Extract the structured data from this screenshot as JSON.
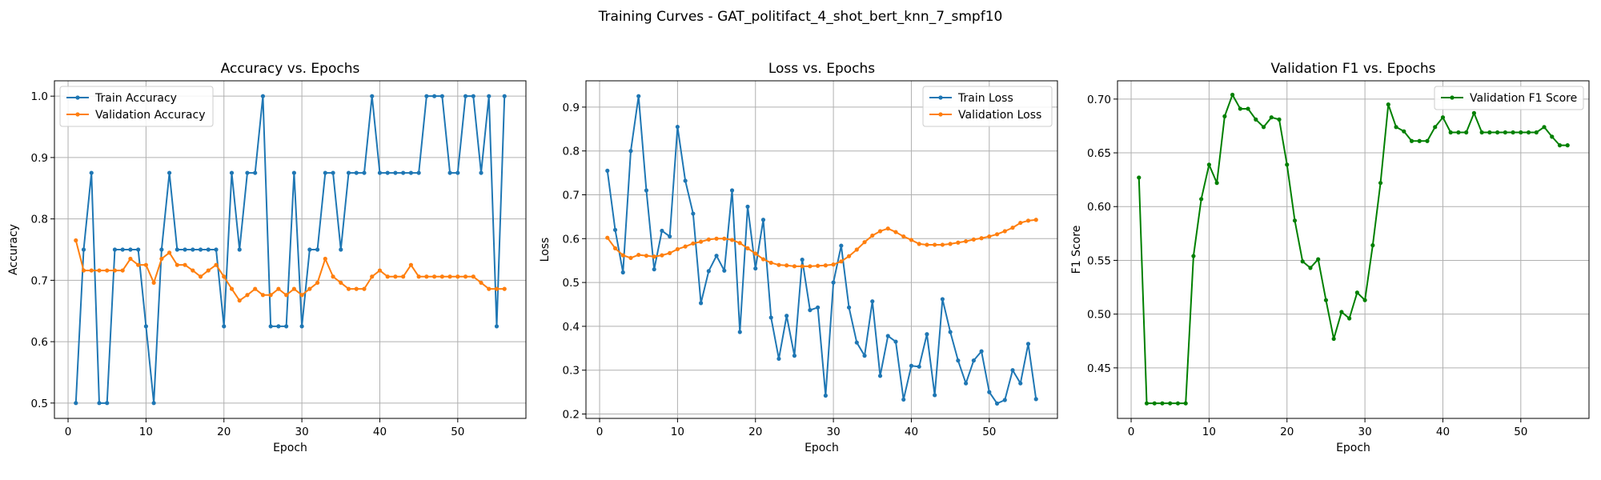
{
  "figure": {
    "suptitle": "Training Curves - GAT_politifact_4_shot_bert_knn_7_smpf10"
  },
  "colors": {
    "train": "#1f77b4",
    "validation": "#ff7f0e",
    "f1": "#008000"
  },
  "chart_data": [
    {
      "type": "line",
      "title": "Accuracy vs. Epochs",
      "xlabel": "Epoch",
      "ylabel": "Accuracy",
      "xlim": [
        -1.75,
        58.75
      ],
      "ylim": [
        0.475,
        1.025
      ],
      "xticks": [
        0,
        10,
        20,
        30,
        40,
        50
      ],
      "yticks": [
        0.5,
        0.6,
        0.7,
        0.8,
        0.9,
        1.0
      ],
      "ytick_labels": [
        "0.5",
        "0.6",
        "0.7",
        "0.8",
        "0.9",
        "1.0"
      ],
      "grid": true,
      "legend": "top-left",
      "series": [
        {
          "name": "Train Accuracy",
          "color": "#1f77b4",
          "values": [
            0.5,
            0.75,
            0.875,
            0.5,
            0.5,
            0.75,
            0.75,
            0.75,
            0.75,
            0.625,
            0.5,
            0.75,
            0.875,
            0.75,
            0.75,
            0.75,
            0.75,
            0.75,
            0.75,
            0.625,
            0.875,
            0.75,
            0.875,
            0.875,
            1.0,
            0.625,
            0.625,
            0.625,
            0.875,
            0.625,
            0.75,
            0.75,
            0.875,
            0.875,
            0.75,
            0.875,
            0.875,
            0.875,
            1.0,
            0.875,
            0.875,
            0.875,
            0.875,
            0.875,
            0.875,
            1.0,
            1.0,
            1.0,
            0.875,
            0.875,
            1.0,
            1.0,
            0.875,
            1.0,
            0.625,
            1.0
          ]
        },
        {
          "name": "Validation Accuracy",
          "color": "#ff7f0e",
          "values": [
            0.765,
            0.716,
            0.716,
            0.716,
            0.716,
            0.716,
            0.716,
            0.735,
            0.725,
            0.725,
            0.696,
            0.735,
            0.745,
            0.725,
            0.725,
            0.716,
            0.706,
            0.716,
            0.725,
            0.706,
            0.686,
            0.667,
            0.676,
            0.686,
            0.676,
            0.676,
            0.686,
            0.676,
            0.686,
            0.676,
            0.686,
            0.696,
            0.735,
            0.706,
            0.696,
            0.686,
            0.686,
            0.686,
            0.706,
            0.716,
            0.706,
            0.706,
            0.706,
            0.725,
            0.706,
            0.706,
            0.706,
            0.706,
            0.706,
            0.706,
            0.706,
            0.706,
            0.696,
            0.686,
            0.686,
            0.686
          ]
        }
      ]
    },
    {
      "type": "line",
      "title": "Loss vs. Epochs",
      "xlabel": "Epoch",
      "ylabel": "Loss",
      "xlim": [
        -1.75,
        58.75
      ],
      "ylim": [
        0.19,
        0.96
      ],
      "xticks": [
        0,
        10,
        20,
        30,
        40,
        50
      ],
      "yticks": [
        0.2,
        0.3,
        0.4,
        0.5,
        0.6,
        0.7,
        0.8,
        0.9
      ],
      "ytick_labels": [
        "0.2",
        "0.3",
        "0.4",
        "0.5",
        "0.6",
        "0.7",
        "0.8",
        "0.9"
      ],
      "grid": true,
      "legend": "top-right",
      "series": [
        {
          "name": "Train Loss",
          "color": "#1f77b4",
          "values": [
            0.755,
            0.62,
            0.523,
            0.8,
            0.925,
            0.71,
            0.53,
            0.618,
            0.605,
            0.855,
            0.732,
            0.657,
            0.453,
            0.526,
            0.561,
            0.527,
            0.71,
            0.387,
            0.673,
            0.532,
            0.643,
            0.42,
            0.326,
            0.424,
            0.333,
            0.552,
            0.437,
            0.443,
            0.242,
            0.5,
            0.584,
            0.443,
            0.363,
            0.333,
            0.457,
            0.287,
            0.378,
            0.365,
            0.233,
            0.31,
            0.308,
            0.382,
            0.243,
            0.462,
            0.387,
            0.322,
            0.27,
            0.322,
            0.343,
            0.25,
            0.224,
            0.232,
            0.3,
            0.27,
            0.36,
            0.234
          ]
        },
        {
          "name": "Validation Loss",
          "color": "#ff7f0e",
          "values": [
            0.602,
            0.578,
            0.562,
            0.556,
            0.563,
            0.561,
            0.559,
            0.562,
            0.567,
            0.576,
            0.582,
            0.589,
            0.593,
            0.598,
            0.6,
            0.6,
            0.597,
            0.59,
            0.578,
            0.566,
            0.553,
            0.545,
            0.54,
            0.539,
            0.537,
            0.537,
            0.537,
            0.538,
            0.539,
            0.541,
            0.548,
            0.56,
            0.575,
            0.592,
            0.607,
            0.617,
            0.623,
            0.615,
            0.605,
            0.597,
            0.588,
            0.586,
            0.586,
            0.586,
            0.588,
            0.591,
            0.594,
            0.598,
            0.601,
            0.605,
            0.61,
            0.617,
            0.625,
            0.636,
            0.641,
            0.643
          ]
        }
      ]
    },
    {
      "type": "line",
      "title": "Validation F1 vs. Epochs",
      "xlabel": "Epoch",
      "ylabel": "F1 Score",
      "xlim": [
        -1.75,
        58.75
      ],
      "ylim": [
        0.403,
        0.717
      ],
      "xticks": [
        0,
        10,
        20,
        30,
        40,
        50
      ],
      "yticks": [
        0.45,
        0.5,
        0.55,
        0.6,
        0.65,
        0.7
      ],
      "ytick_labels": [
        "0.45",
        "0.50",
        "0.55",
        "0.60",
        "0.65",
        "0.70"
      ],
      "grid": true,
      "legend": "top-right",
      "series": [
        {
          "name": "Validation F1 Score",
          "color": "#008000",
          "values": [
            0.627,
            0.417,
            0.417,
            0.417,
            0.417,
            0.417,
            0.417,
            0.554,
            0.607,
            0.639,
            0.622,
            0.684,
            0.704,
            0.691,
            0.691,
            0.681,
            0.674,
            0.683,
            0.681,
            0.639,
            0.587,
            0.549,
            0.543,
            0.551,
            0.513,
            0.477,
            0.502,
            0.496,
            0.52,
            0.513,
            0.564,
            0.622,
            0.695,
            0.674,
            0.67,
            0.661,
            0.661,
            0.661,
            0.674,
            0.683,
            0.669,
            0.669,
            0.669,
            0.687,
            0.669,
            0.669,
            0.669,
            0.669,
            0.669,
            0.669,
            0.669,
            0.669,
            0.674,
            0.665,
            0.657,
            0.657
          ]
        }
      ]
    }
  ]
}
